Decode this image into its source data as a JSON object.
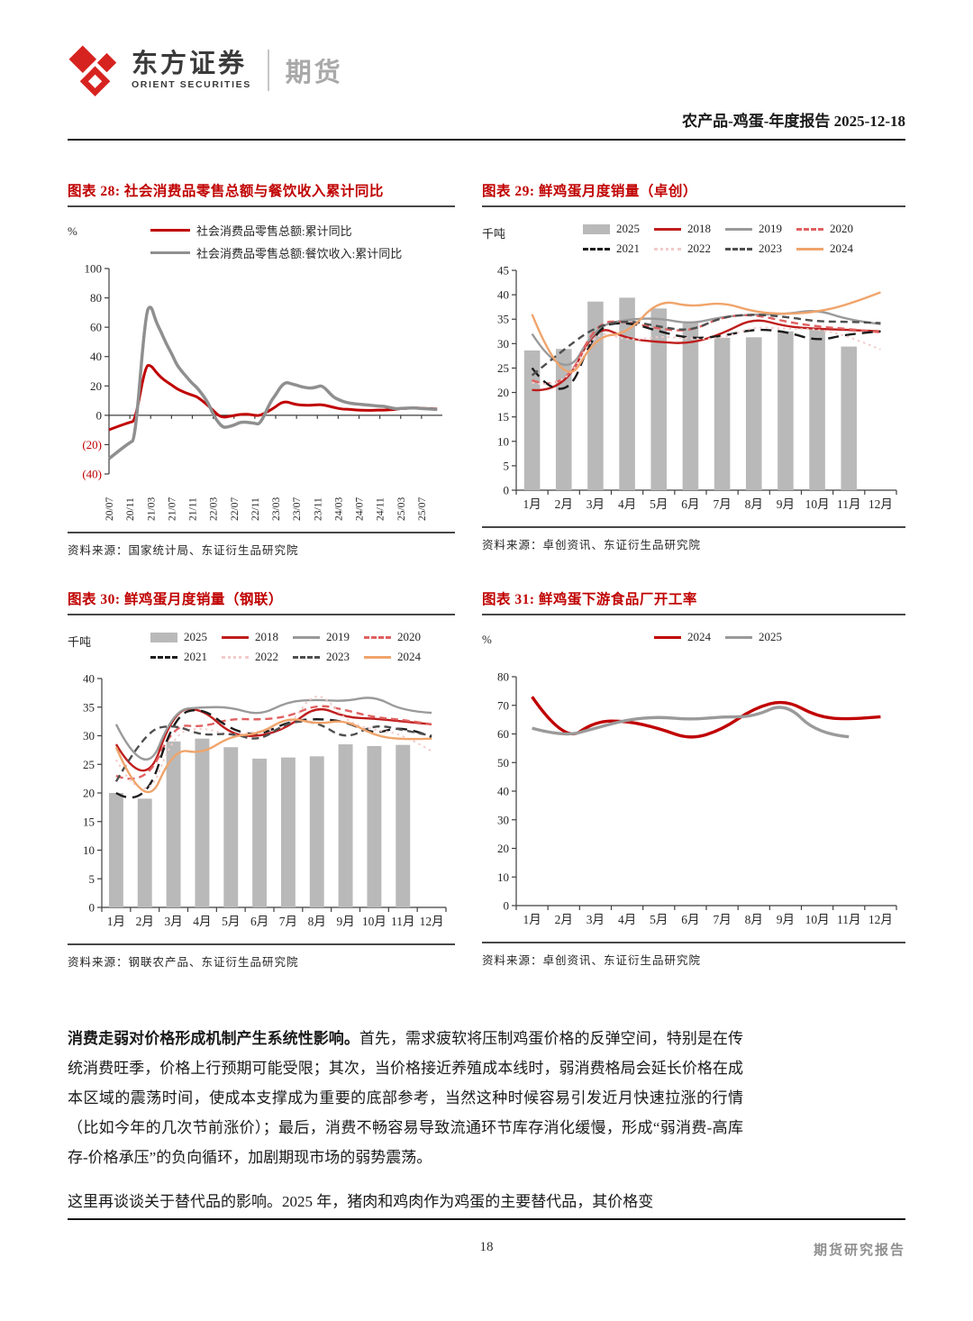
{
  "header": {
    "logo_cn": "东方证券",
    "logo_en": "ORIENT SECURITIES",
    "dept": "期货",
    "report_title": "农产品-鸡蛋-年度报告 2025-12-18"
  },
  "footer": {
    "page_number": "18",
    "label": "期货研究报告"
  },
  "paragraphs": [
    {
      "bold": "消费走弱对价格形成机制产生系统性影响。",
      "rest": "首先，需求疲软将压制鸡蛋价格的反弹空间，特别是在传统消费旺季，价格上行预期可能受限；其次，当价格接近养殖成本线时，弱消费格局会延长价格在成本区域的震荡时间，使成本支撑成为重要的底部参考，当然这种时候容易引发近月快速拉涨的行情（比如今年的几次节前涨价）；最后，消费不畅容易导致流通环节库存消化缓慢，形成“弱消费-高库存-价格承压”的负向循环，加剧期现市场的弱势震荡。"
    },
    {
      "bold": "",
      "rest": "这里再谈谈关于替代品的影响。2025 年，猪肉和鸡肉作为鸡蛋的主要替代品，其价格变"
    }
  ],
  "chart_data": [
    {
      "type": "line",
      "title": "图表 28: 社会消费品零售总额与餐饮收入累计同比",
      "source": "资料来源：国家统计局、东证衍生品研究院",
      "ylabel": "%",
      "ylim": [
        -40,
        100
      ],
      "yticks": [
        100,
        80,
        60,
        40,
        20,
        0,
        -20,
        -40
      ],
      "x_domain": [
        0,
        64
      ],
      "x_tick_pos": [
        0,
        4,
        8,
        12,
        16,
        20,
        24,
        28,
        32,
        36,
        40,
        44,
        48,
        52,
        56,
        60
      ],
      "x_tick_labels": [
        "20/07",
        "20/11",
        "21/03",
        "21/07",
        "21/11",
        "22/03",
        "22/07",
        "22/11",
        "23/03",
        "23/07",
        "23/11",
        "24/03",
        "24/07",
        "24/11",
        "25/03",
        "25/07"
      ],
      "margins": {
        "l": 46,
        "r": 14,
        "t": 6,
        "b": 56
      },
      "series": [
        {
          "name": "社会消费品零售总额:累计同比",
          "color": "#c00000",
          "style": "solid",
          "width": 3,
          "points": [
            [
              0,
              -9.9
            ],
            [
              2,
              -7.2
            ],
            [
              4,
              -4.8
            ],
            [
              5,
              -3.9
            ],
            [
              7,
              33.8
            ],
            [
              8,
              34.2
            ],
            [
              9,
              29.6
            ],
            [
              10,
              25.7
            ],
            [
              11,
              23.0
            ],
            [
              12,
              20.7
            ],
            [
              13,
              18.1
            ],
            [
              14,
              16.4
            ],
            [
              15,
              14.9
            ],
            [
              16,
              13.7
            ],
            [
              17,
              12.5
            ],
            [
              19,
              6.7
            ],
            [
              20,
              3.3
            ],
            [
              21,
              -0.2
            ],
            [
              22,
              -1.5
            ],
            [
              23,
              -0.7
            ],
            [
              24,
              -0.2
            ],
            [
              25,
              0.5
            ],
            [
              26,
              0.7
            ],
            [
              27,
              0.6
            ],
            [
              28,
              -0.1
            ],
            [
              29,
              -0.2
            ],
            [
              31,
              3.5
            ],
            [
              32,
              5.8
            ],
            [
              33,
              8.5
            ],
            [
              34,
              9.3
            ],
            [
              35,
              8.2
            ],
            [
              36,
              7.3
            ],
            [
              37,
              7.0
            ],
            [
              38,
              6.8
            ],
            [
              39,
              6.9
            ],
            [
              40,
              7.2
            ],
            [
              41,
              7.2
            ],
            [
              43,
              5.5
            ],
            [
              44,
              4.7
            ],
            [
              45,
              4.1
            ],
            [
              46,
              4.1
            ],
            [
              47,
              3.7
            ],
            [
              48,
              3.5
            ],
            [
              49,
              3.4
            ],
            [
              50,
              3.3
            ],
            [
              51,
              3.5
            ],
            [
              52,
              3.5
            ],
            [
              53,
              3.5
            ],
            [
              55,
              4.0
            ],
            [
              56,
              4.6
            ],
            [
              57,
              4.7
            ],
            [
              58,
              5.0
            ],
            [
              59,
              5.0
            ],
            [
              60,
              4.8
            ],
            [
              61,
              4.6
            ],
            [
              62,
              4.5
            ],
            [
              63,
              4.3
            ]
          ]
        },
        {
          "name": "社会消费品零售总额:餐饮收入:累计同比",
          "color": "#8f8f8f",
          "style": "solid",
          "width": 3.5,
          "points": [
            [
              0,
              -29.6
            ],
            [
              2,
              -23.9
            ],
            [
              4,
              -18.6
            ],
            [
              5,
              -16.6
            ],
            [
              7,
              68.9
            ],
            [
              8,
              75.8
            ],
            [
              9,
              63.9
            ],
            [
              10,
              56.8
            ],
            [
              11,
              48.6
            ],
            [
              12,
              42.3
            ],
            [
              13,
              34.4
            ],
            [
              14,
              29.8
            ],
            [
              15,
              25.7
            ],
            [
              16,
              21.6
            ],
            [
              17,
              18.6
            ],
            [
              19,
              8.9
            ],
            [
              20,
              0.5
            ],
            [
              21,
              -5.1
            ],
            [
              22,
              -8.5
            ],
            [
              23,
              -7.7
            ],
            [
              24,
              -6.8
            ],
            [
              25,
              -5.0
            ],
            [
              26,
              -4.6
            ],
            [
              27,
              -5.0
            ],
            [
              28,
              -5.4
            ],
            [
              29,
              -6.3
            ],
            [
              31,
              9.2
            ],
            [
              32,
              13.9
            ],
            [
              33,
              19.8
            ],
            [
              34,
              22.6
            ],
            [
              35,
              21.4
            ],
            [
              36,
              20.5
            ],
            [
              37,
              19.4
            ],
            [
              38,
              18.7
            ],
            [
              39,
              18.5
            ],
            [
              40,
              19.4
            ],
            [
              41,
              20.4
            ],
            [
              43,
              12.5
            ],
            [
              44,
              10.8
            ],
            [
              45,
              9.3
            ],
            [
              46,
              8.4
            ],
            [
              47,
              7.9
            ],
            [
              48,
              7.5
            ],
            [
              49,
              7.2
            ],
            [
              50,
              6.9
            ],
            [
              51,
              6.5
            ],
            [
              52,
              6.2
            ],
            [
              53,
              6.0
            ],
            [
              55,
              4.3
            ],
            [
              56,
              4.7
            ],
            [
              57,
              4.8
            ],
            [
              58,
              5.0
            ],
            [
              59,
              4.9
            ],
            [
              60,
              4.6
            ],
            [
              61,
              4.4
            ],
            [
              62,
              4.2
            ],
            [
              63,
              4.0
            ]
          ]
        }
      ]
    },
    {
      "type": "bar+line",
      "title": "图表 29: 鲜鸡蛋月度销量（卓创）",
      "source": "资料来源：卓创资讯、东证衍生品研究院",
      "ylabel": "千吨",
      "ylim": [
        0,
        45
      ],
      "yticks": [
        45,
        40,
        35,
        30,
        25,
        20,
        15,
        10,
        5,
        0
      ],
      "categories": [
        "1月",
        "2月",
        "3月",
        "4月",
        "5月",
        "6月",
        "7月",
        "8月",
        "9月",
        "10月",
        "11月",
        "12月"
      ],
      "margins": {
        "l": 38,
        "r": 10,
        "t": 14,
        "b": 32
      },
      "bars": {
        "name": "2025",
        "color": "#b9b9b9",
        "values": [
          28.6,
          28.9,
          38.6,
          39.4,
          37.2,
          34.4,
          31.2,
          31.3,
          32.5,
          33.0,
          29.4,
          null
        ]
      },
      "series": [
        {
          "name": "2018",
          "color": "#bf1d1d",
          "style": "solid",
          "width": 2.4,
          "values": [
            20.5,
            20.0,
            34.0,
            31.0,
            30.3,
            30.0,
            32.0,
            35.3,
            33.5,
            33.0,
            32.8,
            32.5
          ]
        },
        {
          "name": "2019",
          "color": "#9a9a9a",
          "style": "solid",
          "width": 2.4,
          "values": [
            32.0,
            22.0,
            33.5,
            35.0,
            35.2,
            34.0,
            35.5,
            36.0,
            36.0,
            37.0,
            34.8,
            34.0
          ]
        },
        {
          "name": "2020",
          "color": "#e06060",
          "style": "dash",
          "width": 2.4,
          "values": [
            22.5,
            20.0,
            34.5,
            34.5,
            33.0,
            32.5,
            35.5,
            36.0,
            34.5,
            33.5,
            33.0,
            32.3
          ]
        },
        {
          "name": "2021",
          "color": "#1c1c1c",
          "style": "longdash",
          "width": 2.4,
          "values": [
            25.0,
            16.5,
            33.5,
            34.5,
            32.5,
            31.0,
            31.5,
            33.0,
            32.5,
            30.5,
            32.0,
            32.5
          ]
        },
        {
          "name": "2022",
          "color": "#f2cbcb",
          "style": "dot",
          "width": 2,
          "values": [
            22.0,
            20.5,
            33.0,
            30.5,
            31.5,
            31.0,
            31.0,
            33.5,
            33.0,
            33.0,
            31.5,
            28.8
          ]
        },
        {
          "name": "2023",
          "color": "#4f4f4f",
          "style": "dash",
          "width": 2.4,
          "values": [
            23.5,
            28.8,
            33.5,
            34.8,
            33.5,
            32.5,
            35.5,
            36.0,
            35.5,
            34.5,
            34.5,
            34.2
          ]
        },
        {
          "name": "2024",
          "color": "#f0a46b",
          "style": "solid",
          "width": 2.4,
          "values": [
            36.0,
            20.0,
            31.5,
            32.0,
            39.0,
            37.5,
            38.5,
            36.5,
            36.0,
            36.5,
            38.0,
            40.5
          ]
        }
      ]
    },
    {
      "type": "bar+line",
      "title": "图表 30: 鲜鸡蛋月度销量（钢联）",
      "source": "资料来源：钢联农产品、东证衍生品研究院",
      "ylabel": "千吨",
      "ylim": [
        0,
        40
      ],
      "yticks": [
        40,
        35,
        30,
        25,
        20,
        15,
        10,
        5,
        0
      ],
      "categories": [
        "1月",
        "2月",
        "3月",
        "4月",
        "5月",
        "6月",
        "7月",
        "8月",
        "9月",
        "10月",
        "11月",
        "12月"
      ],
      "margins": {
        "l": 38,
        "r": 10,
        "t": 14,
        "b": 32
      },
      "bars": {
        "name": "2025",
        "color": "#b9b9b9",
        "values": [
          20.0,
          19.0,
          29.0,
          29.5,
          28.0,
          26.0,
          26.2,
          26.4,
          28.5,
          28.2,
          28.4,
          null
        ]
      },
      "series": [
        {
          "name": "2018",
          "color": "#bf1d1d",
          "style": "solid",
          "width": 2.4,
          "values": [
            28.5,
            20.0,
            34.5,
            34.8,
            30.2,
            29.8,
            31.5,
            35.3,
            33.2,
            33.0,
            32.5,
            32.0
          ]
        },
        {
          "name": "2019",
          "color": "#9a9a9a",
          "style": "solid",
          "width": 2.4,
          "values": [
            32.0,
            22.0,
            34.5,
            35.0,
            35.0,
            33.5,
            36.0,
            36.3,
            36.0,
            37.0,
            34.3,
            34.0
          ]
        },
        {
          "name": "2020",
          "color": "#e06060",
          "style": "dash",
          "width": 2.4,
          "values": [
            23.0,
            21.0,
            32.0,
            31.5,
            33.0,
            32.8,
            33.3,
            35.5,
            34.5,
            33.2,
            32.8,
            32.0
          ]
        },
        {
          "name": "2021",
          "color": "#1c1c1c",
          "style": "longdash",
          "width": 2.4,
          "values": [
            20.0,
            17.0,
            33.5,
            35.0,
            31.0,
            30.0,
            32.5,
            33.0,
            32.5,
            30.2,
            31.8,
            29.8
          ]
        },
        {
          "name": "2022",
          "color": "#f2cbcb",
          "style": "dot",
          "width": 2,
          "values": [
            25.8,
            17.0,
            30.5,
            31.5,
            30.0,
            30.8,
            31.3,
            38.5,
            32.5,
            31.0,
            30.3,
            27.3
          ]
        },
        {
          "name": "2023",
          "color": "#4f4f4f",
          "style": "dash",
          "width": 2.4,
          "values": [
            22.0,
            30.8,
            32.0,
            30.0,
            30.5,
            29.0,
            32.5,
            32.5,
            29.3,
            32.0,
            31.0,
            30.0
          ]
        },
        {
          "name": "2024",
          "color": "#f0a46b",
          "style": "solid",
          "width": 2.4,
          "values": [
            28.0,
            16.3,
            27.8,
            26.8,
            30.0,
            30.3,
            33.3,
            32.0,
            32.8,
            30.0,
            29.3,
            29.5
          ]
        }
      ]
    },
    {
      "type": "line",
      "title": "图表 31: 鲜鸡蛋下游食品厂开工率",
      "source": "资料来源：卓创资讯、东证衍生品研究院",
      "ylabel": "%",
      "ylim": [
        0,
        80
      ],
      "yticks": [
        80,
        70,
        60,
        50,
        40,
        30,
        20,
        10,
        0
      ],
      "categories": [
        "1月",
        "2月",
        "3月",
        "4月",
        "5月",
        "6月",
        "7月",
        "8月",
        "9月",
        "10月",
        "11月",
        "12月"
      ],
      "margins": {
        "l": 38,
        "r": 10,
        "t": 14,
        "b": 32
      },
      "series": [
        {
          "name": "2024",
          "color": "#c00000",
          "style": "solid",
          "width": 3.4,
          "values": [
            73,
            57,
            64.5,
            64.5,
            62,
            58,
            61.5,
            69,
            72,
            66,
            65,
            66
          ]
        },
        {
          "name": "2025",
          "color": "#9a9a9a",
          "style": "solid",
          "width": 3.4,
          "values": [
            62,
            59,
            62,
            65,
            66,
            65,
            66,
            66,
            71,
            60,
            59,
            null
          ]
        }
      ]
    }
  ]
}
